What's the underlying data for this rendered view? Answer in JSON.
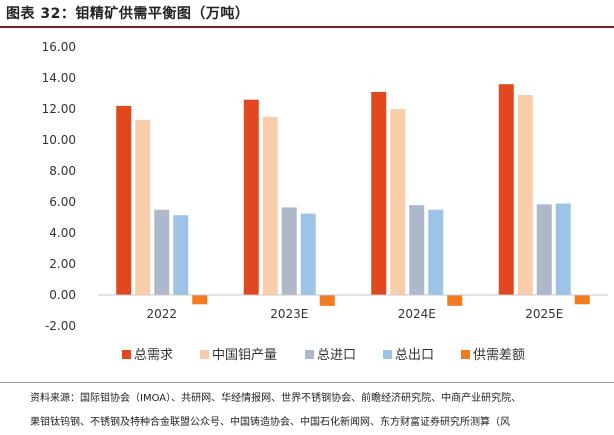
{
  "figure": {
    "title": "图表 32：钼精矿供需平衡图（万吨）"
  },
  "chart_data": {
    "type": "bar",
    "categories": [
      "2022",
      "2023E",
      "2024E",
      "2025E"
    ],
    "ylim": [
      -2,
      16
    ],
    "y_ticks": [
      "16.00",
      "14.00",
      "12.00",
      "10.00",
      "8.00",
      "6.00",
      "4.00",
      "2.00",
      "0.00",
      "-2.00"
    ],
    "grid": false,
    "legend_position": "bottom",
    "series": [
      {
        "name": "总需求",
        "color": "#E0491F",
        "values": [
          12.2,
          12.6,
          13.1,
          13.6
        ]
      },
      {
        "name": "中国钼产量",
        "color": "#F9CDAA",
        "values": [
          11.3,
          11.5,
          12.0,
          12.9
        ]
      },
      {
        "name": "总进口",
        "color": "#ADB9CA",
        "values": [
          5.5,
          5.65,
          5.8,
          5.85
        ]
      },
      {
        "name": "总出口",
        "color": "#9DC3E6",
        "values": [
          5.15,
          5.25,
          5.5,
          5.9
        ]
      },
      {
        "name": "供需差额",
        "color": "#F57B20",
        "values": [
          -0.6,
          -0.7,
          -0.7,
          -0.6
        ]
      }
    ]
  },
  "source": {
    "line1": "资料来源：国际钼协会（IMOA）、共研网、华经情报网、世界不锈钢协会、前瞻经济研究院、中商产业研究院、",
    "line2": "果钼钛钨钢、不锈钢及特种合金联盟公众号、中国铸造协会、中国石化新闻网、东方财富证券研究所测算（风"
  }
}
